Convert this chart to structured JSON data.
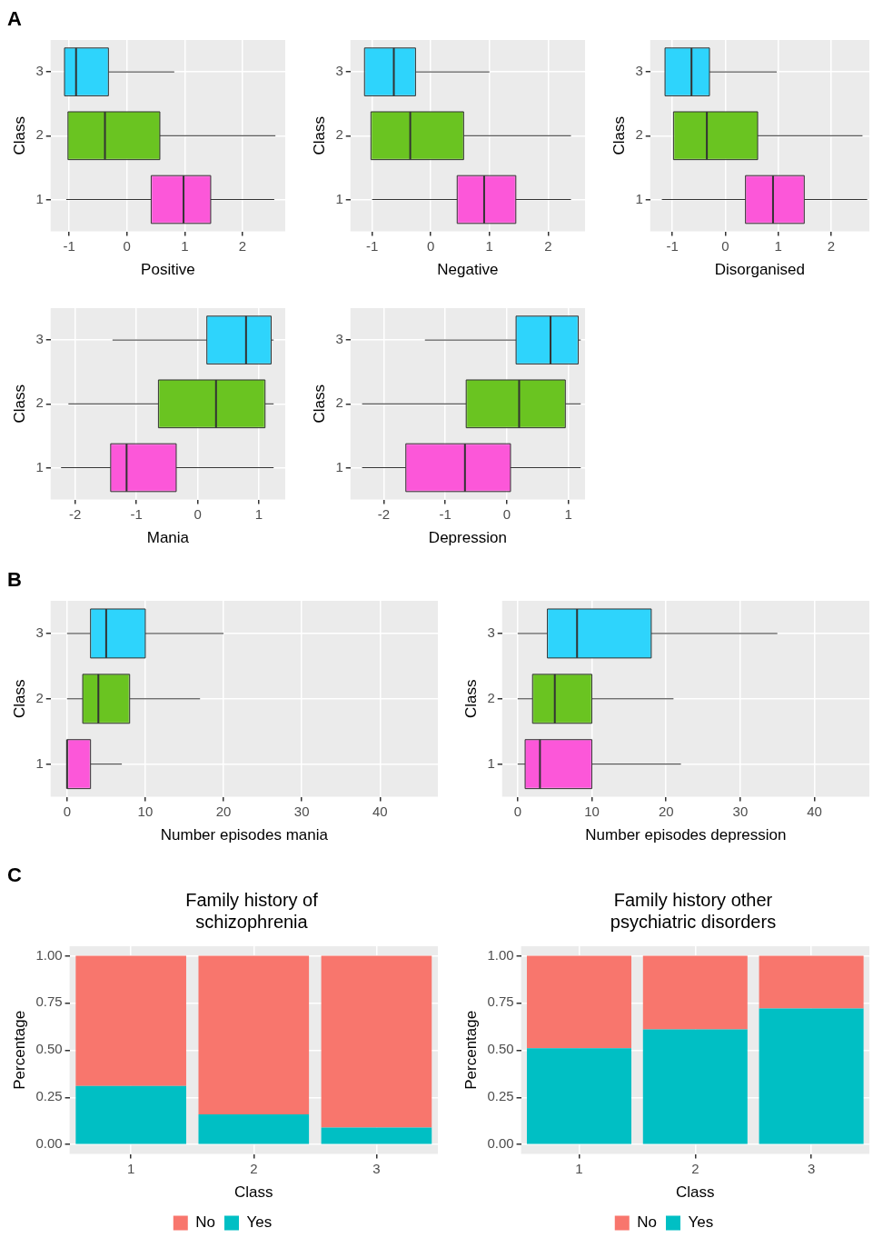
{
  "chart_data": [
    {
      "type": "box",
      "orientation": "horizontal",
      "annotations": [
        "A"
      ],
      "xlabel": "Positive",
      "ylabel": "Class",
      "categories": [
        "3",
        "2",
        "1"
      ],
      "colors": [
        "#2ed4fc",
        "#6ac421",
        "#fc57d9"
      ],
      "boxes": [
        {
          "low": -1.08,
          "q1": -1.08,
          "median": -0.88,
          "q3": -0.32,
          "high": 0.82
        },
        {
          "low": -1.02,
          "q1": -1.02,
          "median": -0.38,
          "q3": 0.57,
          "high": 2.57
        },
        {
          "low": -1.05,
          "q1": 0.42,
          "median": 0.98,
          "q3": 1.45,
          "high": 2.55
        }
      ],
      "xlim": [
        -1.32,
        2.74
      ],
      "xticks": [
        -1,
        0,
        1,
        2
      ],
      "grid": true
    },
    {
      "type": "box",
      "orientation": "horizontal",
      "xlabel": "Negative",
      "ylabel": "Class",
      "categories": [
        "3",
        "2",
        "1"
      ],
      "colors": [
        "#2ed4fc",
        "#6ac421",
        "#fc57d9"
      ],
      "boxes": [
        {
          "low": -1.13,
          "q1": -1.13,
          "median": -0.63,
          "q3": -0.26,
          "high": 1.0
        },
        {
          "low": -1.02,
          "q1": -1.02,
          "median": -0.35,
          "q3": 0.56,
          "high": 2.39
        },
        {
          "low": -1.0,
          "q1": 0.45,
          "median": 0.91,
          "q3": 1.45,
          "high": 2.39
        }
      ],
      "xlim": [
        -1.37,
        2.63
      ],
      "xticks": [
        -1,
        0,
        1,
        2
      ],
      "grid": true
    },
    {
      "type": "box",
      "orientation": "horizontal",
      "xlabel": "Disorganised",
      "ylabel": "Class",
      "categories": [
        "3",
        "2",
        "1"
      ],
      "colors": [
        "#2ed4fc",
        "#6ac421",
        "#fc57d9"
      ],
      "boxes": [
        {
          "low": -1.14,
          "q1": -1.14,
          "median": -0.64,
          "q3": -0.3,
          "high": 0.97
        },
        {
          "low": -0.98,
          "q1": -0.98,
          "median": -0.35,
          "q3": 0.61,
          "high": 2.59
        },
        {
          "low": -1.2,
          "q1": 0.38,
          "median": 0.9,
          "q3": 1.49,
          "high": 2.68
        }
      ],
      "xlim": [
        -1.42,
        2.72
      ],
      "xticks": [
        -1,
        0,
        1,
        2
      ],
      "grid": true
    },
    {
      "type": "box",
      "orientation": "horizontal",
      "xlabel": "Mania",
      "ylabel": "Class",
      "categories": [
        "3",
        "2",
        "1"
      ],
      "colors": [
        "#2ed4fc",
        "#6ac421",
        "#fc57d9"
      ],
      "boxes": [
        {
          "low": -1.39,
          "q1": 0.15,
          "median": 0.79,
          "q3": 1.2,
          "high": 1.24
        },
        {
          "low": -2.11,
          "q1": -0.64,
          "median": 0.3,
          "q3": 1.1,
          "high": 1.24
        },
        {
          "low": -2.23,
          "q1": -1.42,
          "median": -1.16,
          "q3": -0.35,
          "high": 1.24
        }
      ],
      "xlim": [
        -2.4,
        1.43
      ],
      "xticks": [
        -2,
        -1,
        0,
        1
      ],
      "grid": true
    },
    {
      "type": "box",
      "orientation": "horizontal",
      "xlabel": "Depression",
      "ylabel": "Class",
      "categories": [
        "3",
        "2",
        "1"
      ],
      "colors": [
        "#2ed4fc",
        "#6ac421",
        "#fc57d9"
      ],
      "boxes": [
        {
          "low": -1.33,
          "q1": 0.15,
          "median": 0.71,
          "q3": 1.16,
          "high": 1.2
        },
        {
          "low": -2.35,
          "q1": -0.66,
          "median": 0.2,
          "q3": 0.95,
          "high": 1.2
        },
        {
          "low": -2.35,
          "q1": -1.64,
          "median": -0.68,
          "q3": 0.06,
          "high": 1.2
        }
      ],
      "xlim": [
        -2.54,
        1.27
      ],
      "xticks": [
        -2,
        -1,
        0,
        1
      ],
      "grid": true
    },
    {
      "type": "box",
      "orientation": "horizontal",
      "annotations": [
        "B"
      ],
      "xlabel": "Number episodes mania",
      "ylabel": "Class",
      "categories": [
        "3",
        "2",
        "1"
      ],
      "colors": [
        "#2ed4fc",
        "#6ac421",
        "#fc57d9"
      ],
      "boxes": [
        {
          "low": 0,
          "q1": 3,
          "median": 5,
          "q3": 10,
          "high": 20
        },
        {
          "low": 0,
          "q1": 2,
          "median": 4,
          "q3": 8,
          "high": 17
        },
        {
          "low": 0,
          "q1": 0,
          "median": 0,
          "q3": 3,
          "high": 7
        }
      ],
      "xlim": [
        -2.1,
        47.4
      ],
      "xticks": [
        0,
        10,
        20,
        30,
        40
      ],
      "grid": true
    },
    {
      "type": "box",
      "orientation": "horizontal",
      "xlabel": "Number episodes depression",
      "ylabel": "Class",
      "categories": [
        "3",
        "2",
        "1"
      ],
      "colors": [
        "#2ed4fc",
        "#6ac421",
        "#fc57d9"
      ],
      "boxes": [
        {
          "low": 0,
          "q1": 4,
          "median": 8,
          "q3": 18,
          "high": 35
        },
        {
          "low": 0,
          "q1": 2,
          "median": 5,
          "q3": 10,
          "high": 21
        },
        {
          "low": 0,
          "q1": 1,
          "median": 3,
          "q3": 10,
          "high": 22
        }
      ],
      "xlim": [
        -2.1,
        47.4
      ],
      "xticks": [
        0,
        10,
        20,
        30,
        40
      ],
      "grid": true
    },
    {
      "type": "bar",
      "stacked": true,
      "annotations": [
        "C"
      ],
      "title": "Family history of schizophrenia",
      "xlabel": "Class",
      "ylabel": "Percentage",
      "categories": [
        "1",
        "2",
        "3"
      ],
      "series": [
        {
          "name": "Yes",
          "color": "#00bfc4",
          "values": [
            0.31,
            0.16,
            0.09
          ]
        },
        {
          "name": "No",
          "color": "#f8766d",
          "values": [
            0.69,
            0.84,
            0.91
          ]
        }
      ],
      "ylim": [
        -0.05,
        1.05
      ],
      "yticks": [
        {
          "value": 0,
          "label": "0.00"
        },
        {
          "value": 0.25,
          "label": "0.25"
        },
        {
          "value": 0.5,
          "label": "0.50"
        },
        {
          "value": 0.75,
          "label": "0.75"
        },
        {
          "value": 1,
          "label": "1.00"
        }
      ],
      "grid": true,
      "legend": "bottom"
    },
    {
      "type": "bar",
      "stacked": true,
      "title": "Family history other psychiatric disorders",
      "xlabel": "Class",
      "ylabel": "Percentage",
      "categories": [
        "1",
        "2",
        "3"
      ],
      "series": [
        {
          "name": "Yes",
          "color": "#00bfc4",
          "values": [
            0.51,
            0.61,
            0.72
          ]
        },
        {
          "name": "No",
          "color": "#f8766d",
          "values": [
            0.49,
            0.39,
            0.28
          ]
        }
      ],
      "ylim": [
        -0.05,
        1.05
      ],
      "yticks": [
        {
          "value": 0,
          "label": "0.00"
        },
        {
          "value": 0.25,
          "label": "0.25"
        },
        {
          "value": 0.5,
          "label": "0.50"
        },
        {
          "value": 0.75,
          "label": "0.75"
        },
        {
          "value": 1,
          "label": "1.00"
        }
      ],
      "grid": true,
      "legend": "bottom"
    }
  ]
}
